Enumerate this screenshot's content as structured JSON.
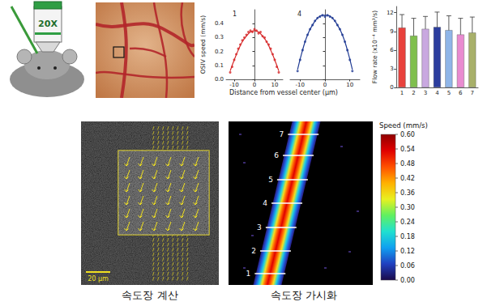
{
  "panels": {
    "objective_label": "20X",
    "scale_bar": "20 µm",
    "captions": [
      "속도장 계산",
      "속도장 가시화"
    ],
    "line_markers": [
      1,
      2,
      3,
      4,
      5,
      6,
      7
    ],
    "colorbar": {
      "title": "Speed (mm/s)",
      "range": [
        0,
        0.6
      ],
      "ticks": [
        {
          "value": 0,
          "label": "0.00"
        },
        {
          "value": 0.06,
          "label": "0.06"
        },
        {
          "value": 0.12,
          "label": "0.12"
        },
        {
          "value": 0.18,
          "label": "0.18"
        },
        {
          "value": 0.24,
          "label": "0.24"
        },
        {
          "value": 0.3,
          "label": "0.30"
        },
        {
          "value": 0.36,
          "label": "0.36"
        },
        {
          "value": 0.42,
          "label": "0.42"
        },
        {
          "value": 0.48,
          "label": "0.48"
        },
        {
          "value": 0.54,
          "label": "0.54"
        },
        {
          "value": 0.6,
          "label": "0.60"
        }
      ]
    }
  },
  "shared_xlabel": "Distance from vessel center (µm)",
  "chart_data": [
    {
      "type": "line",
      "title": "1",
      "ylabel": "OSIV speed (mm/s)",
      "xlim": [
        -14,
        14
      ],
      "xticks": [
        -10,
        0,
        10
      ],
      "ylim": [
        0,
        0.5
      ],
      "yticks": [
        {
          "value": 0,
          "label": "0.0"
        },
        0.1,
        0.2,
        0.3,
        0.4
      ],
      "grid": false,
      "series": [
        {
          "type": "scatter",
          "color": "#d62728",
          "marker": "circle",
          "x": [
            -12,
            -11,
            -10,
            -9,
            -8,
            -7,
            -6,
            -5,
            -4,
            -3,
            -2,
            -1,
            0,
            1,
            2,
            3,
            4,
            5,
            6,
            7,
            8,
            9,
            10,
            11,
            12
          ],
          "values": [
            0.05,
            0.09,
            0.14,
            0.18,
            0.22,
            0.25,
            0.28,
            0.3,
            0.32,
            0.34,
            0.35,
            0.34,
            0.36,
            0.35,
            0.33,
            0.34,
            0.31,
            0.3,
            0.27,
            0.25,
            0.22,
            0.18,
            0.14,
            0.09,
            0.05
          ]
        },
        {
          "type": "line",
          "color": "#d62728",
          "line_style": "solid",
          "x": [
            -12,
            -10,
            -8,
            -6,
            -4,
            -2,
            0,
            2,
            4,
            6,
            8,
            10,
            12
          ],
          "values": [
            0.06,
            0.14,
            0.21,
            0.27,
            0.31,
            0.34,
            0.35,
            0.34,
            0.31,
            0.27,
            0.21,
            0.14,
            0.06
          ]
        }
      ]
    },
    {
      "type": "line",
      "title": "4",
      "xlim": [
        -14,
        14
      ],
      "xticks": [
        -10,
        0,
        10
      ],
      "ylim": [
        0,
        0.5
      ],
      "yticks": [
        {
          "value": 0,
          "label": "0.0"
        },
        0.1,
        0.2,
        0.3,
        0.4
      ],
      "grid": false,
      "tick_labels": "x",
      "series": [
        {
          "type": "scatter",
          "color": "#1f3a93",
          "marker": "circle",
          "x": [
            -11,
            -10,
            -9,
            -8,
            -7,
            -6,
            -5,
            -4,
            -3,
            -2,
            -1,
            0,
            1,
            2,
            3,
            4,
            5,
            6,
            7,
            8,
            9,
            10,
            11
          ],
          "values": [
            0.06,
            0.14,
            0.21,
            0.27,
            0.32,
            0.36,
            0.39,
            0.42,
            0.44,
            0.45,
            0.46,
            0.45,
            0.46,
            0.45,
            0.44,
            0.42,
            0.39,
            0.36,
            0.32,
            0.27,
            0.21,
            0.14,
            0.06
          ]
        },
        {
          "type": "line",
          "color": "#1f3a93",
          "line_style": "solid",
          "x": [
            -11,
            -9,
            -7,
            -5,
            -3,
            -1,
            1,
            3,
            5,
            7,
            9,
            11
          ],
          "values": [
            0.07,
            0.21,
            0.32,
            0.39,
            0.44,
            0.46,
            0.46,
            0.44,
            0.39,
            0.32,
            0.21,
            0.07
          ]
        }
      ]
    },
    {
      "type": "bar",
      "ylabel": "Flow rate (x10⁻⁴ mm³/s)",
      "categories": [
        "1",
        "2",
        "3",
        "4",
        "5",
        "6",
        "7"
      ],
      "values": [
        9.6,
        8.3,
        9.4,
        9.7,
        9.2,
        8.5,
        8.8
      ],
      "errors": [
        2.1,
        2.8,
        2.0,
        2.4,
        2.3,
        2.6,
        2.5
      ],
      "colors": [
        "#e8413c",
        "#7fbf4d",
        "#c9a8e0",
        "#2c3e9e",
        "#8fb5e8",
        "#e98bd0",
        "#a8b06a"
      ],
      "ylim": [
        0,
        13
      ],
      "yticks": [
        0,
        3,
        6,
        9,
        12
      ],
      "grid": false
    }
  ]
}
